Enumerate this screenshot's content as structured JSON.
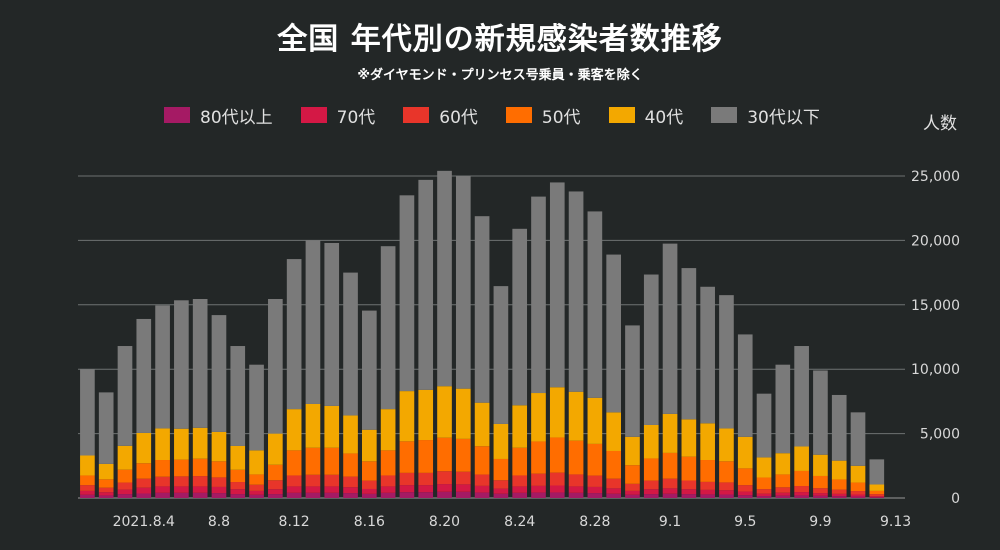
{
  "chart_data": {
    "type": "bar",
    "stacked": true,
    "title": "全国 年代別の新規感染者数推移",
    "subtitle": "※ダイヤモンド・プリンセス号乗員・乗客を除く",
    "ylabel": "人数",
    "ylim": [
      0,
      25000
    ],
    "yticks": [
      "0",
      "5,000",
      "10,000",
      "15,000",
      "20,000",
      "25,000"
    ],
    "ytick_values": [
      0,
      5000,
      10000,
      15000,
      20000,
      25000
    ],
    "grid": true,
    "legend_position": "top",
    "categories": [
      "8.1",
      "8.2",
      "8.3",
      "8.4",
      "8.5",
      "8.6",
      "8.7",
      "8.8",
      "8.9",
      "8.10",
      "8.11",
      "8.12",
      "8.13",
      "8.14",
      "8.15",
      "8.16",
      "8.17",
      "8.18",
      "8.19",
      "8.20",
      "8.21",
      "8.22",
      "8.23",
      "8.24",
      "8.25",
      "8.26",
      "8.27",
      "8.28",
      "8.29",
      "8.30",
      "8.31",
      "9.1",
      "9.2",
      "9.3",
      "9.4",
      "9.5",
      "9.6",
      "9.7",
      "9.8",
      "9.9",
      "9.10",
      "9.11",
      "9.12",
      "9.13"
    ],
    "xtick_labels": [
      {
        "index": 3,
        "label": "2021.8.4"
      },
      {
        "index": 7,
        "label": "8.8"
      },
      {
        "index": 11,
        "label": "8.12"
      },
      {
        "index": 15,
        "label": "8.16"
      },
      {
        "index": 19,
        "label": "8.20"
      },
      {
        "index": 23,
        "label": "8.24"
      },
      {
        "index": 27,
        "label": "8.28"
      },
      {
        "index": 31,
        "label": "9.1"
      },
      {
        "index": 35,
        "label": "9.5"
      },
      {
        "index": 39,
        "label": "9.9"
      },
      {
        "index": 43,
        "label": "9.13"
      }
    ],
    "totals": [
      10000,
      8200,
      11800,
      13900,
      14950,
      15350,
      15450,
      14200,
      11800,
      10350,
      15450,
      18550,
      20000,
      19800,
      17500,
      14550,
      19550,
      23500,
      24700,
      25400,
      25000,
      21900,
      16450,
      20900,
      23400,
      24500,
      23800,
      22250,
      18900,
      13400,
      17350,
      19750,
      17850,
      16400,
      15750,
      12700,
      8100,
      10350,
      11800,
      9900,
      8000,
      6650,
      3000,
      0
    ],
    "series": [
      {
        "name": "80代以上",
        "color": "#a51a64",
        "values": [
          250,
          200,
          300,
          350,
          400,
          400,
          400,
          380,
          300,
          250,
          300,
          400,
          400,
          400,
          380,
          320,
          400,
          450,
          450,
          480,
          480,
          420,
          330,
          400,
          420,
          430,
          400,
          380,
          330,
          250,
          300,
          330,
          300,
          280,
          270,
          220,
          150,
          180,
          200,
          170,
          140,
          120,
          60,
          0
        ]
      },
      {
        "name": "70代",
        "color": "#d41845",
        "values": [
          300,
          250,
          350,
          450,
          500,
          500,
          500,
          480,
          380,
          300,
          380,
          500,
          500,
          500,
          460,
          380,
          500,
          550,
          550,
          600,
          580,
          520,
          400,
          500,
          520,
          540,
          500,
          480,
          420,
          300,
          380,
          420,
          380,
          350,
          340,
          280,
          190,
          230,
          260,
          210,
          180,
          150,
          80,
          0
        ]
      },
      {
        "name": "60代",
        "color": "#e8352a",
        "values": [
          450,
          350,
          550,
          700,
          750,
          780,
          800,
          740,
          560,
          480,
          700,
          850,
          900,
          900,
          820,
          650,
          850,
          950,
          950,
          1000,
          980,
          880,
          650,
          850,
          950,
          1000,
          930,
          880,
          750,
          550,
          670,
          750,
          680,
          620,
          600,
          500,
          350,
          420,
          470,
          380,
          330,
          270,
          160,
          0
        ]
      },
      {
        "name": "50代",
        "color": "#ff6d00",
        "values": [
          750,
          650,
          1000,
          1200,
          1300,
          1300,
          1350,
          1250,
          950,
          800,
          1200,
          1950,
          2100,
          2100,
          1800,
          1500,
          1950,
          2450,
          2550,
          2600,
          2550,
          2200,
          1650,
          2150,
          2500,
          2730,
          2620,
          2460,
          2150,
          1450,
          1720,
          2000,
          1850,
          1700,
          1640,
          1300,
          900,
          1000,
          1170,
          950,
          790,
          660,
          250,
          0
        ]
      },
      {
        "name": "40代",
        "color": "#f3a800",
        "values": [
          1550,
          1200,
          1850,
          2350,
          2450,
          2400,
          2400,
          2280,
          1850,
          1870,
          2420,
          3200,
          3400,
          3250,
          2950,
          2450,
          3200,
          3900,
          3900,
          4000,
          3900,
          3380,
          2720,
          3300,
          3760,
          3900,
          3800,
          3580,
          3000,
          2200,
          2600,
          3030,
          2900,
          2850,
          2550,
          2450,
          1560,
          1650,
          1900,
          1650,
          1460,
          1300,
          500,
          0
        ]
      },
      {
        "name": "30代以下",
        "color": "#7a7a7a",
        "values": [
          6700,
          5550,
          7750,
          8850,
          9550,
          9970,
          10000,
          9070,
          7760,
          6650,
          10450,
          11650,
          12700,
          12650,
          11090,
          9250,
          12650,
          15200,
          16300,
          16720,
          16510,
          14480,
          10700,
          13700,
          15250,
          15900,
          15550,
          14470,
          12250,
          8650,
          11680,
          13220,
          11740,
          10600,
          10350,
          7950,
          4950,
          6870,
          7800,
          6540,
          5100,
          4150,
          1950,
          0
        ]
      }
    ]
  }
}
